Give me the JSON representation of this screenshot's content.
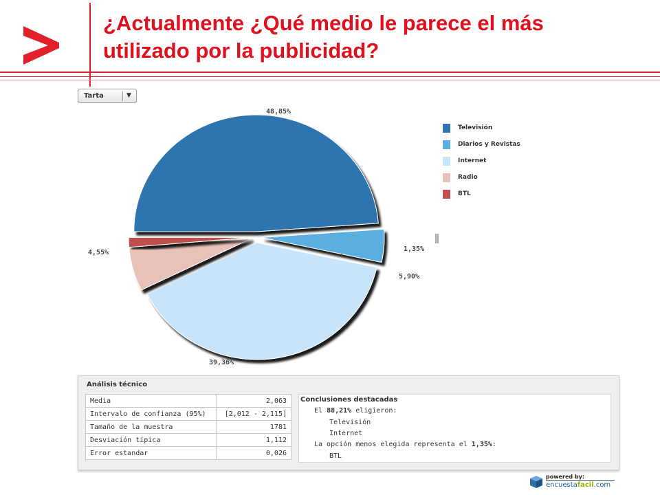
{
  "slide": {
    "title_line1": "¿Actualmente ¿Qué medio le parece el más",
    "title_line2": "utilizado por la publicidad?",
    "accent_color": "#e0202a"
  },
  "chart_type_select": {
    "value": "Tarta"
  },
  "chart_data": {
    "type": "pie",
    "title": "",
    "slices": [
      {
        "name": "Televisión",
        "value": 48.85,
        "label": "48,85%",
        "color": "#2f74b0",
        "exploded": true
      },
      {
        "name": "Diarios y Revistas",
        "value": 4.55,
        "label": "4,55%",
        "color": "#5aaee0",
        "exploded": true
      },
      {
        "name": "Internet",
        "value": 39.36,
        "label": "39,36%",
        "color": "#c8e4fa",
        "exploded": true
      },
      {
        "name": "Radio",
        "value": 5.9,
        "label": "5,90%",
        "color": "#e8c2b8",
        "exploded": true
      },
      {
        "name": "BTL",
        "value": 1.35,
        "label": "1,35%",
        "color": "#c0504d",
        "exploded": true
      }
    ],
    "legend_position": "right"
  },
  "analysis": {
    "title": "Análisis técnico",
    "rows": [
      {
        "label": "Media",
        "value": "2,063"
      },
      {
        "label": "Intervalo de confianza (95%)",
        "value": "[2,012 - 2,115]"
      },
      {
        "label": "Tamaño de la muestra",
        "value": "1781"
      },
      {
        "label": "Desviación típica",
        "value": "1,112"
      },
      {
        "label": "Error estandar",
        "value": "0,026"
      }
    ],
    "conclusions": {
      "title": "Conclusiones destacadas",
      "line1_prefix": "El ",
      "line1_value": "88,21%",
      "line1_suffix": " eligieron:",
      "items1": [
        "Televisión",
        "Internet"
      ],
      "line2_prefix": "La opción menos elegida representa el ",
      "line2_value": "1,35%",
      "line2_suffix": ":",
      "items2": [
        "BTL"
      ]
    }
  },
  "footer": {
    "powered_by": "powered by:",
    "brand_prefix": "encuesta",
    "brand_mid": "facil",
    "brand_suffix": ".com"
  }
}
